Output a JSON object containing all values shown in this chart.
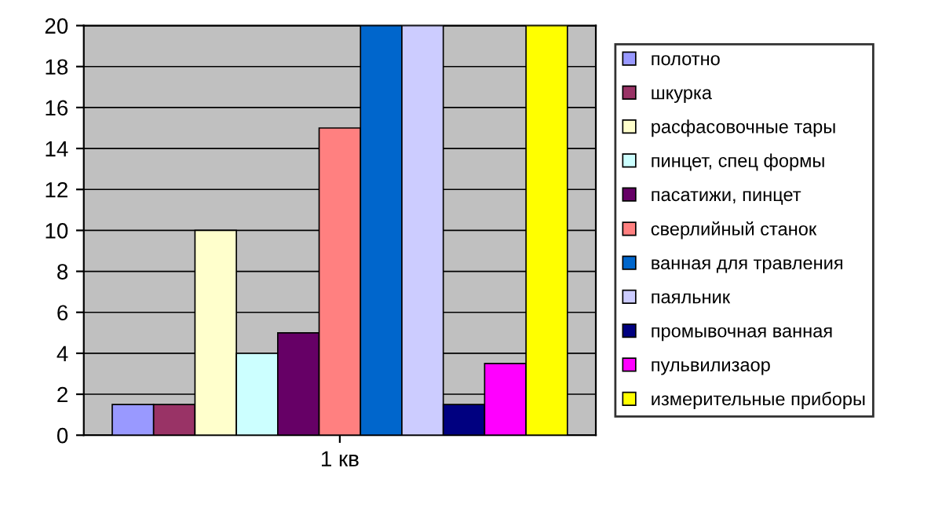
{
  "chart_data": {
    "type": "bar",
    "categories": [
      "1 кв"
    ],
    "series": [
      {
        "name": "полотно",
        "color": "#9999ff",
        "values": [
          1.5
        ]
      },
      {
        "name": "шкурка",
        "color": "#993366",
        "values": [
          1.5
        ]
      },
      {
        "name": "расфасовочные тары",
        "color": "#ffffcc",
        "values": [
          10
        ]
      },
      {
        "name": "пинцет, спец формы",
        "color": "#ccffff",
        "values": [
          4
        ]
      },
      {
        "name": "пасатижи, пинцет",
        "color": "#660066",
        "values": [
          5
        ]
      },
      {
        "name": "сверлийный станок",
        "color": "#ff8080",
        "values": [
          15
        ]
      },
      {
        "name": "ванная для травления",
        "color": "#0066cc",
        "values": [
          20
        ]
      },
      {
        "name": "паяльник",
        "color": "#ccccff",
        "values": [
          20
        ]
      },
      {
        "name": "промывочная ванная",
        "color": "#000080",
        "values": [
          1.5
        ]
      },
      {
        "name": "пульвилизаор",
        "color": "#ff00ff",
        "values": [
          3.5
        ]
      },
      {
        "name": "измерительные приборы",
        "color": "#ffff00",
        "values": [
          20
        ]
      }
    ],
    "ylim": [
      0,
      20
    ],
    "yticks": [
      0,
      2,
      4,
      6,
      8,
      10,
      12,
      14,
      16,
      18,
      20
    ],
    "grid": "y",
    "legend": "right"
  }
}
